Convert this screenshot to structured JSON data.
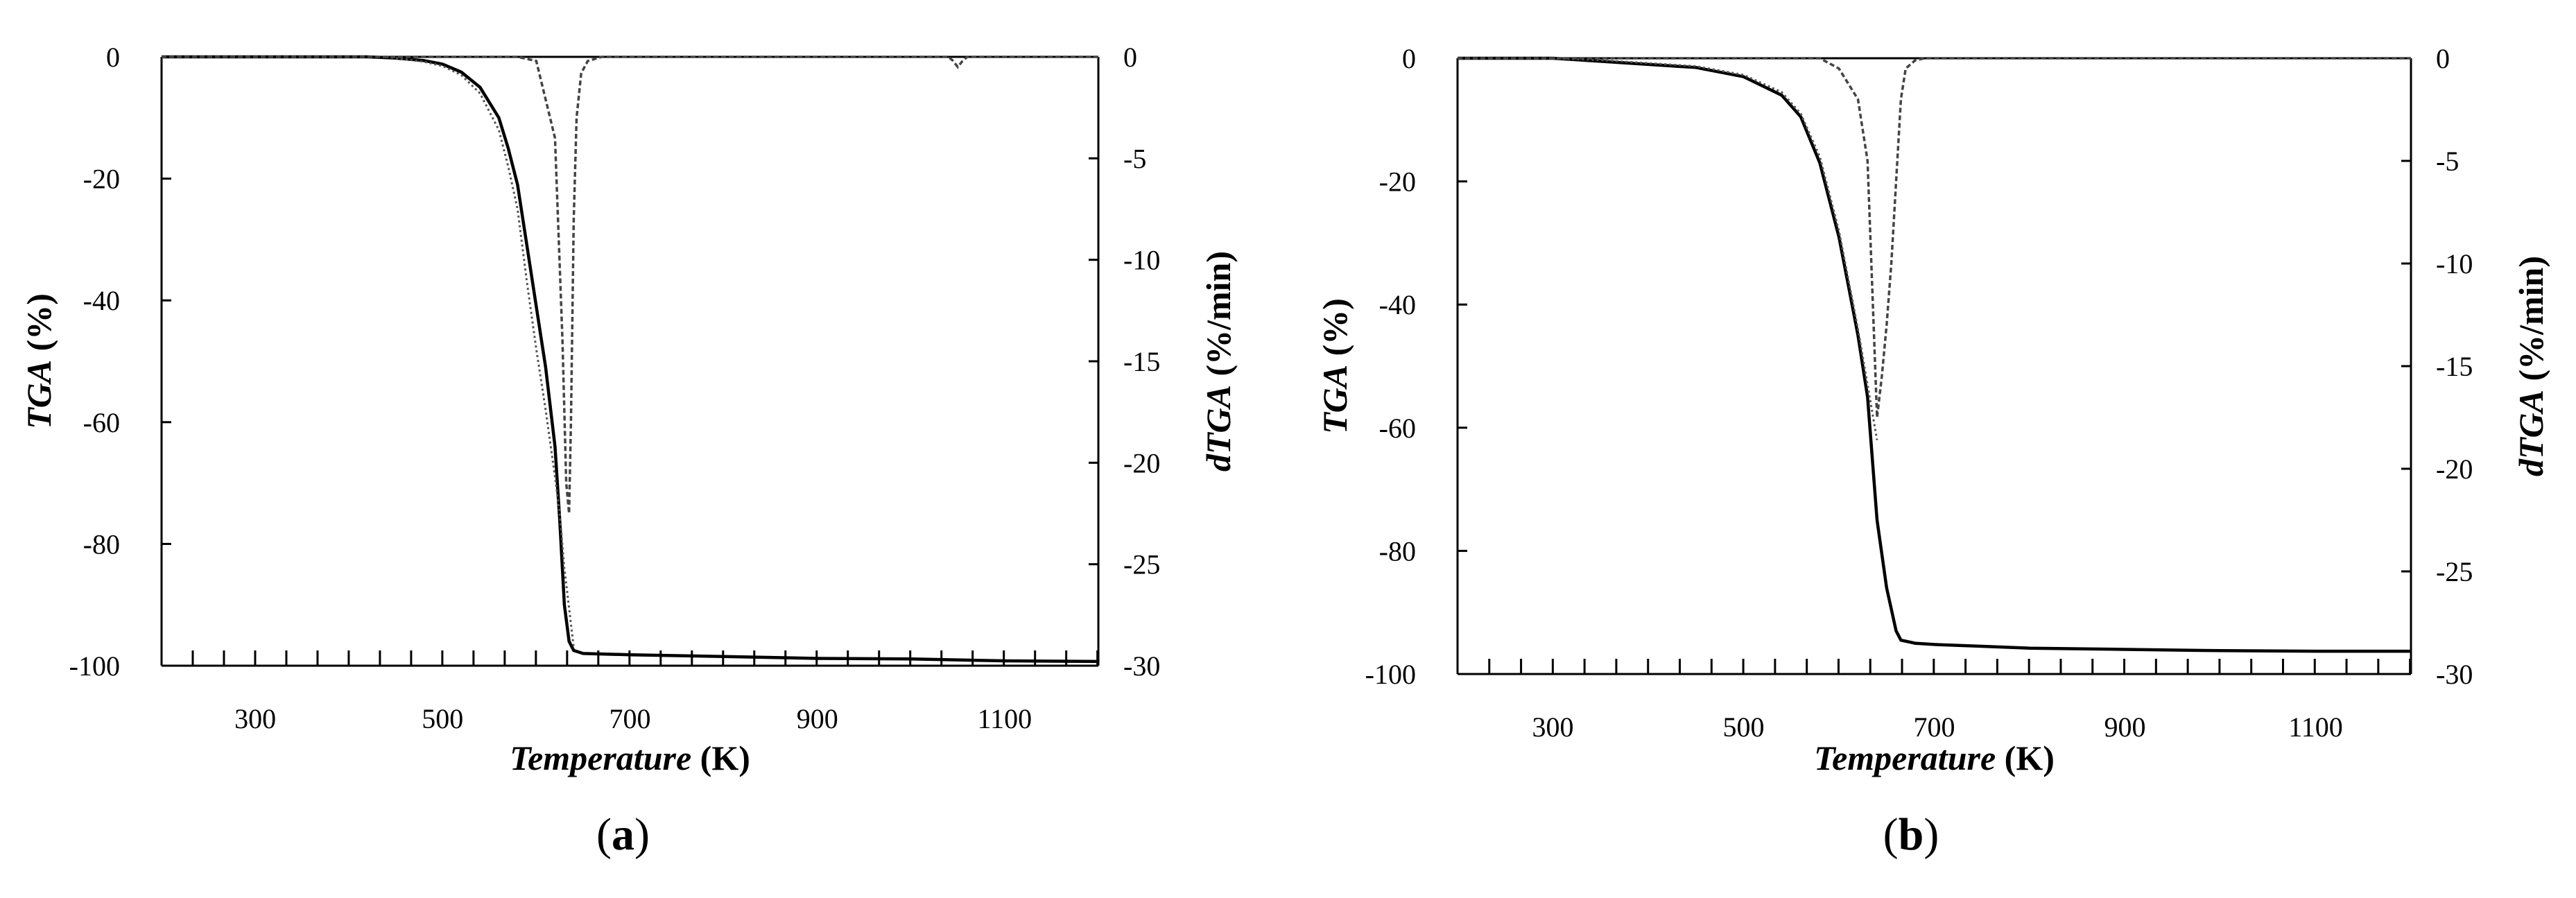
{
  "panels": [
    {
      "label_open": "(",
      "label_letter": "a",
      "label_close": ")"
    },
    {
      "label_open": "(",
      "label_letter": "b",
      "label_close": ")"
    }
  ],
  "chart_data": [
    {
      "type": "line",
      "panel": "a",
      "xlabel_italic": "Temperature",
      "xlabel_unit": " (K)",
      "ylabel_italic": "TGA",
      "ylabel_unit": " (%)",
      "y2label_italic": "dTGA",
      "y2label_unit": " (%/min)",
      "xlim": [
        200,
        1200
      ],
      "ylim": [
        -100,
        0
      ],
      "y2lim": [
        -30,
        0
      ],
      "xticks": [
        "300",
        "500",
        "700",
        "900",
        "1100"
      ],
      "yticks": [
        "0",
        "-20",
        "-40",
        "-60",
        "-80",
        "-100"
      ],
      "y2ticks": [
        "0",
        "-5",
        "-10",
        "-15",
        "-20",
        "-25",
        "-30"
      ],
      "minor_x_step": 33.3,
      "series": [
        {
          "axis": "left",
          "style": "solid",
          "x": [
            200,
            420,
            450,
            480,
            500,
            520,
            540,
            560,
            570,
            580,
            590,
            600,
            610,
            620,
            625,
            630,
            635,
            640,
            650,
            700,
            800,
            900,
            1000,
            1100,
            1200
          ],
          "y": [
            0,
            0,
            -0.2,
            -0.6,
            -1.2,
            -2.5,
            -5,
            -10,
            -15,
            -21,
            -31,
            -41,
            -51,
            -64,
            -76,
            -90,
            -96,
            -97.5,
            -98,
            -98.2,
            -98.5,
            -98.8,
            -98.9,
            -99.2,
            -99.3
          ]
        },
        {
          "axis": "left",
          "style": "dotted",
          "x": [
            440,
            480,
            500,
            520,
            540,
            560,
            570,
            580,
            590,
            600,
            610,
            620,
            625,
            630,
            640
          ],
          "y": [
            0,
            -0.8,
            -1.5,
            -3,
            -6,
            -12,
            -18,
            -25,
            -37,
            -48,
            -58,
            -69,
            -75,
            -84,
            -97
          ]
        },
        {
          "axis": "right",
          "style": "dashed",
          "x": [
            200,
            500,
            580,
            600,
            620,
            628,
            632,
            635,
            637,
            640,
            643,
            648,
            655,
            670,
            1040,
            1045,
            1050,
            1055,
            1060,
            1200
          ],
          "y": [
            0,
            0,
            0,
            -0.2,
            -4,
            -14,
            -21,
            -22.5,
            -18,
            -8,
            -3,
            -0.8,
            -0.2,
            0,
            0,
            -0.2,
            -0.5,
            -0.2,
            0,
            0
          ]
        }
      ]
    },
    {
      "type": "line",
      "panel": "b",
      "xlabel_italic": "Temperature",
      "xlabel_unit": " (K)",
      "ylabel_italic": "TGA",
      "ylabel_unit": " (%)",
      "y2label_italic": "dTGA",
      "y2label_unit": " (%/min)",
      "xlim": [
        200,
        1200
      ],
      "ylim": [
        -100,
        0
      ],
      "y2lim": [
        -30,
        0
      ],
      "xticks": [
        "300",
        "500",
        "700",
        "900",
        "1100"
      ],
      "yticks": [
        "0",
        "-20",
        "-40",
        "-60",
        "-80",
        "-100"
      ],
      "y2ticks": [
        "0",
        "-5",
        "-10",
        "-15",
        "-20",
        "-25",
        "-30"
      ],
      "minor_x_step": 33.3,
      "series": [
        {
          "axis": "left",
          "style": "solid",
          "x": [
            200,
            300,
            350,
            400,
            450,
            500,
            540,
            560,
            580,
            600,
            610,
            620,
            630,
            640,
            650,
            660,
            665,
            680,
            700,
            750,
            800,
            900,
            1000,
            1100,
            1200
          ],
          "y": [
            0,
            0,
            -0.5,
            -1,
            -1.5,
            -3,
            -6,
            -9.5,
            -17,
            -29,
            -37,
            -45,
            -55,
            -75,
            -86,
            -93,
            -94.5,
            -95,
            -95.2,
            -95.5,
            -95.8,
            -96,
            -96.2,
            -96.3,
            -96.3
          ]
        },
        {
          "axis": "left",
          "style": "dotted",
          "x": [
            300,
            350,
            400,
            450,
            500,
            540,
            560,
            580,
            600,
            620,
            630,
            640
          ],
          "y": [
            0,
            -0.3,
            -0.8,
            -1.3,
            -2.7,
            -5.5,
            -9,
            -16,
            -28,
            -44,
            -53,
            -62
          ]
        },
        {
          "axis": "right",
          "style": "dashed",
          "x": [
            200,
            500,
            580,
            600,
            620,
            630,
            640,
            645,
            650,
            655,
            660,
            665,
            670,
            680,
            690,
            1200
          ],
          "y": [
            0,
            0,
            0,
            -0.5,
            -2,
            -5,
            -17.5,
            -15.5,
            -13,
            -10,
            -6,
            -2,
            -0.5,
            -0.1,
            0,
            0
          ]
        }
      ]
    }
  ]
}
